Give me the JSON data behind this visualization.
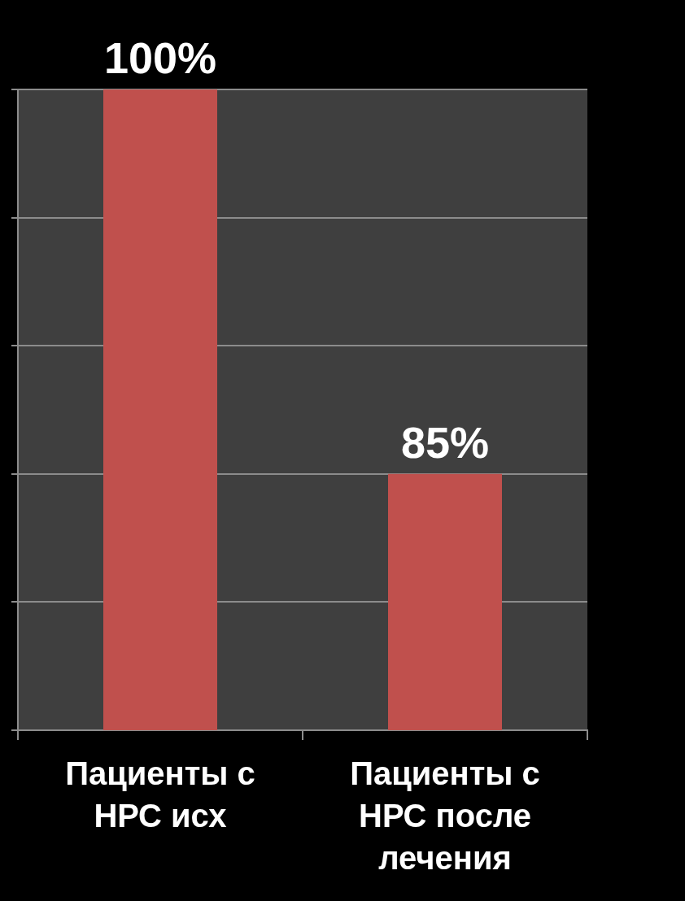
{
  "chart_data": {
    "type": "bar",
    "categories": [
      "Пациенты с НРС исх",
      "Пациенты с НРС после лечения"
    ],
    "values": [
      100,
      85
    ],
    "value_labels": [
      "100%",
      "85%"
    ],
    "color": "#c0504d",
    "ylim": [
      75,
      100
    ],
    "yticks": [
      {
        "value": 75,
        "label": null
      },
      {
        "value": 80,
        "label": null
      },
      {
        "value": 85,
        "label": null
      },
      {
        "value": 90,
        "label": null
      },
      {
        "value": 95,
        "label": null
      },
      {
        "value": 100,
        "label": null
      }
    ],
    "grid": "y",
    "tick_labels": "x"
  }
}
